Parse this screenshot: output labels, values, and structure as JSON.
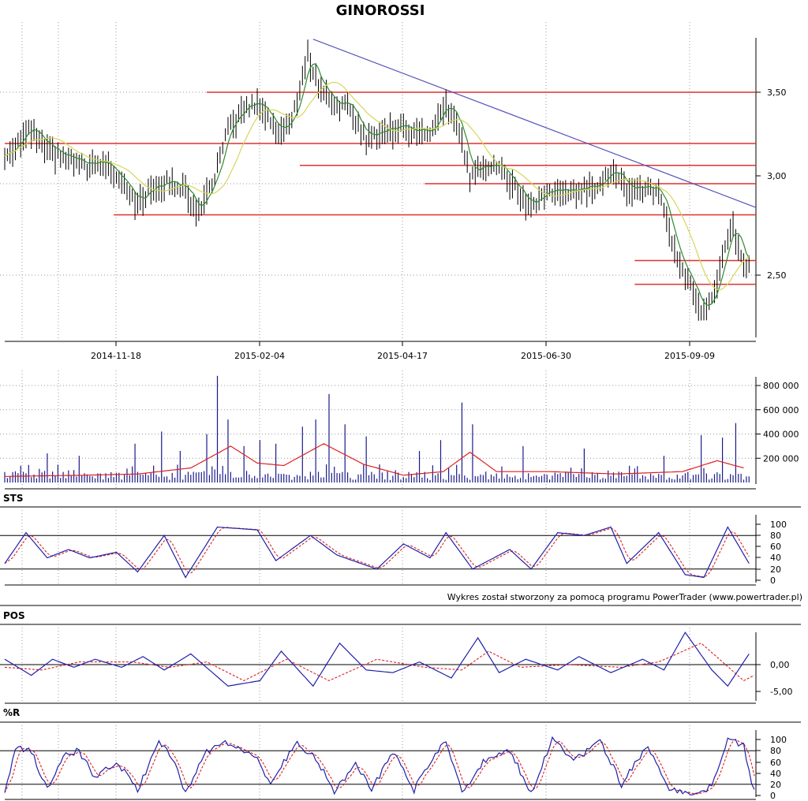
{
  "colors": {
    "price_bar": "#000000",
    "ma_fast": "#2e8b2e",
    "ma_slow": "#d6d65a",
    "support_line": "#e03030",
    "trend_line": "#5555bb",
    "volume_bar": "#1a1a8c",
    "volume_avg": "#dd2020",
    "osc_main": "#2020aa",
    "osc_signal": "#dd2020",
    "grid": "#999999"
  },
  "chart_data": [
    {
      "type": "line",
      "panel": "price",
      "title": "GINOROSSI",
      "x_tick_labels": [
        "2014-11-18",
        "2015-02-04",
        "2015-04-17",
        "2015-06-30",
        "2015-09-09"
      ],
      "y_tick_labels": [
        "3,50",
        "3,00",
        "2,50"
      ],
      "ylim": [
        2.2,
        3.8
      ],
      "grid": true,
      "price_path": [
        {
          "t": 0,
          "v": 3.15
        },
        {
          "t": 5,
          "v": 3.25
        },
        {
          "t": 10,
          "v": 3.3
        },
        {
          "t": 15,
          "v": 3.2
        },
        {
          "t": 22,
          "v": 3.15
        },
        {
          "t": 30,
          "v": 3.1
        },
        {
          "t": 38,
          "v": 3.12
        },
        {
          "t": 45,
          "v": 3.02
        },
        {
          "t": 50,
          "v": 2.9
        },
        {
          "t": 56,
          "v": 3.0
        },
        {
          "t": 62,
          "v": 3.02
        },
        {
          "t": 68,
          "v": 2.98
        },
        {
          "t": 72,
          "v": 2.85
        },
        {
          "t": 78,
          "v": 3.0
        },
        {
          "t": 84,
          "v": 3.3
        },
        {
          "t": 90,
          "v": 3.42
        },
        {
          "t": 96,
          "v": 3.45
        },
        {
          "t": 102,
          "v": 3.3
        },
        {
          "t": 108,
          "v": 3.35
        },
        {
          "t": 114,
          "v": 3.72
        },
        {
          "t": 118,
          "v": 3.55
        },
        {
          "t": 124,
          "v": 3.45
        },
        {
          "t": 130,
          "v": 3.42
        },
        {
          "t": 136,
          "v": 3.25
        },
        {
          "t": 142,
          "v": 3.3
        },
        {
          "t": 148,
          "v": 3.32
        },
        {
          "t": 154,
          "v": 3.3
        },
        {
          "t": 160,
          "v": 3.28
        },
        {
          "t": 166,
          "v": 3.43
        },
        {
          "t": 170,
          "v": 3.35
        },
        {
          "t": 175,
          "v": 3.05
        },
        {
          "t": 180,
          "v": 3.12
        },
        {
          "t": 186,
          "v": 3.1
        },
        {
          "t": 192,
          "v": 2.98
        },
        {
          "t": 198,
          "v": 2.88
        },
        {
          "t": 204,
          "v": 2.97
        },
        {
          "t": 210,
          "v": 2.95
        },
        {
          "t": 216,
          "v": 2.97
        },
        {
          "t": 222,
          "v": 3.0
        },
        {
          "t": 228,
          "v": 3.08
        },
        {
          "t": 234,
          "v": 2.98
        },
        {
          "t": 240,
          "v": 2.98
        },
        {
          "t": 246,
          "v": 2.95
        },
        {
          "t": 250,
          "v": 2.75
        },
        {
          "t": 254,
          "v": 2.55
        },
        {
          "t": 258,
          "v": 2.45
        },
        {
          "t": 262,
          "v": 2.3
        },
        {
          "t": 266,
          "v": 2.4
        },
        {
          "t": 270,
          "v": 2.6
        },
        {
          "t": 274,
          "v": 2.78
        },
        {
          "t": 278,
          "v": 2.55
        }
      ],
      "support_lines": [
        {
          "value": 3.5,
          "from": 76,
          "to": 282
        },
        {
          "value": 3.22,
          "from": 0,
          "to": 282
        },
        {
          "value": 3.1,
          "from": 111,
          "to": 282
        },
        {
          "value": 3.0,
          "from": 158,
          "to": 282
        },
        {
          "value": 2.83,
          "from": 41,
          "to": 282
        },
        {
          "value": 2.58,
          "from": 237,
          "to": 282
        },
        {
          "value": 2.45,
          "from": 237,
          "to": 282
        }
      ],
      "trend_line": {
        "from": {
          "t": 116,
          "v": 3.79
        },
        "to": {
          "t": 282,
          "v": 2.87
        }
      }
    },
    {
      "type": "bar",
      "panel": "volume",
      "y_tick_labels": [
        "800 000",
        "600 000",
        "400 000",
        "200 000"
      ],
      "ylim": [
        0,
        900000
      ],
      "grid": true,
      "spikes": [
        {
          "t": 16,
          "v": 240000
        },
        {
          "t": 28,
          "v": 220000
        },
        {
          "t": 49,
          "v": 320000
        },
        {
          "t": 59,
          "v": 420000
        },
        {
          "t": 66,
          "v": 260000
        },
        {
          "t": 76,
          "v": 400000
        },
        {
          "t": 80,
          "v": 880000
        },
        {
          "t": 84,
          "v": 520000
        },
        {
          "t": 90,
          "v": 300000
        },
        {
          "t": 96,
          "v": 350000
        },
        {
          "t": 102,
          "v": 320000
        },
        {
          "t": 112,
          "v": 460000
        },
        {
          "t": 117,
          "v": 520000
        },
        {
          "t": 122,
          "v": 730000
        },
        {
          "t": 128,
          "v": 480000
        },
        {
          "t": 136,
          "v": 380000
        },
        {
          "t": 156,
          "v": 260000
        },
        {
          "t": 164,
          "v": 350000
        },
        {
          "t": 172,
          "v": 660000
        },
        {
          "t": 176,
          "v": 480000
        },
        {
          "t": 195,
          "v": 300000
        },
        {
          "t": 218,
          "v": 280000
        },
        {
          "t": 248,
          "v": 220000
        },
        {
          "t": 262,
          "v": 390000
        },
        {
          "t": 270,
          "v": 370000
        },
        {
          "t": 275,
          "v": 490000
        }
      ],
      "average_path": [
        {
          "t": 0,
          "v": 50000
        },
        {
          "t": 30,
          "v": 60000
        },
        {
          "t": 50,
          "v": 70000
        },
        {
          "t": 70,
          "v": 120000
        },
        {
          "t": 85,
          "v": 300000
        },
        {
          "t": 95,
          "v": 160000
        },
        {
          "t": 105,
          "v": 140000
        },
        {
          "t": 120,
          "v": 320000
        },
        {
          "t": 135,
          "v": 150000
        },
        {
          "t": 150,
          "v": 60000
        },
        {
          "t": 165,
          "v": 90000
        },
        {
          "t": 175,
          "v": 250000
        },
        {
          "t": 185,
          "v": 90000
        },
        {
          "t": 205,
          "v": 90000
        },
        {
          "t": 230,
          "v": 70000
        },
        {
          "t": 255,
          "v": 90000
        },
        {
          "t": 268,
          "v": 180000
        },
        {
          "t": 278,
          "v": 120000
        }
      ]
    },
    {
      "type": "line",
      "panel": "oscillator",
      "label": "STS",
      "y_tick_labels": [
        "100",
        "80",
        "60",
        "40",
        "20",
        "0"
      ],
      "ylim": [
        0,
        100
      ],
      "reference_lines": [
        80,
        20
      ],
      "grid": true,
      "main_path": [
        {
          "t": 0,
          "v": 30
        },
        {
          "t": 8,
          "v": 85
        },
        {
          "t": 16,
          "v": 40
        },
        {
          "t": 24,
          "v": 55
        },
        {
          "t": 32,
          "v": 40
        },
        {
          "t": 42,
          "v": 50
        },
        {
          "t": 50,
          "v": 15
        },
        {
          "t": 60,
          "v": 80
        },
        {
          "t": 68,
          "v": 5
        },
        {
          "t": 80,
          "v": 95
        },
        {
          "t": 95,
          "v": 90
        },
        {
          "t": 102,
          "v": 35
        },
        {
          "t": 115,
          "v": 80
        },
        {
          "t": 125,
          "v": 45
        },
        {
          "t": 140,
          "v": 20
        },
        {
          "t": 150,
          "v": 65
        },
        {
          "t": 160,
          "v": 40
        },
        {
          "t": 166,
          "v": 85
        },
        {
          "t": 176,
          "v": 20
        },
        {
          "t": 190,
          "v": 55
        },
        {
          "t": 198,
          "v": 20
        },
        {
          "t": 208,
          "v": 85
        },
        {
          "t": 218,
          "v": 80
        },
        {
          "t": 228,
          "v": 95
        },
        {
          "t": 234,
          "v": 30
        },
        {
          "t": 246,
          "v": 85
        },
        {
          "t": 256,
          "v": 10
        },
        {
          "t": 263,
          "v": 5
        },
        {
          "t": 272,
          "v": 95
        },
        {
          "t": 280,
          "v": 30
        }
      ]
    },
    {
      "type": "line",
      "panel": "oscillator",
      "label": "POS",
      "y_tick_labels": [
        "0,00",
        "-5,00"
      ],
      "ylim": [
        -6.5,
        4.5
      ],
      "reference_lines": [
        0
      ],
      "grid": true,
      "main_path": [
        {
          "t": 0,
          "v": -1
        },
        {
          "t": 10,
          "v": 2
        },
        {
          "t": 18,
          "v": -1
        },
        {
          "t": 26,
          "v": 0.5
        },
        {
          "t": 34,
          "v": -1
        },
        {
          "t": 44,
          "v": 0.5
        },
        {
          "t": 52,
          "v": -1.5
        },
        {
          "t": 60,
          "v": 1
        },
        {
          "t": 70,
          "v": -2
        },
        {
          "t": 84,
          "v": 4
        },
        {
          "t": 96,
          "v": 3
        },
        {
          "t": 104,
          "v": -2.5
        },
        {
          "t": 116,
          "v": 4
        },
        {
          "t": 126,
          "v": -4
        },
        {
          "t": 136,
          "v": 1
        },
        {
          "t": 146,
          "v": 1.5
        },
        {
          "t": 156,
          "v": -0.5
        },
        {
          "t": 168,
          "v": 2.5
        },
        {
          "t": 178,
          "v": -5
        },
        {
          "t": 186,
          "v": 1.5
        },
        {
          "t": 196,
          "v": -1
        },
        {
          "t": 208,
          "v": 1
        },
        {
          "t": 216,
          "v": -1.5
        },
        {
          "t": 228,
          "v": 1.5
        },
        {
          "t": 240,
          "v": -1
        },
        {
          "t": 248,
          "v": 1
        },
        {
          "t": 256,
          "v": -6
        },
        {
          "t": 266,
          "v": 1
        },
        {
          "t": 272,
          "v": 4
        },
        {
          "t": 280,
          "v": -2
        }
      ],
      "signal_path": [
        {
          "t": 0,
          "v": 0.5
        },
        {
          "t": 14,
          "v": 1
        },
        {
          "t": 28,
          "v": -0.5
        },
        {
          "t": 48,
          "v": -0.5
        },
        {
          "t": 62,
          "v": 0.5
        },
        {
          "t": 76,
          "v": -0.5
        },
        {
          "t": 90,
          "v": 3
        },
        {
          "t": 106,
          "v": -1
        },
        {
          "t": 122,
          "v": 3
        },
        {
          "t": 140,
          "v": -1
        },
        {
          "t": 158,
          "v": 0.5
        },
        {
          "t": 172,
          "v": 1
        },
        {
          "t": 182,
          "v": -2.5
        },
        {
          "t": 194,
          "v": 0.5
        },
        {
          "t": 212,
          "v": 0
        },
        {
          "t": 232,
          "v": 0.5
        },
        {
          "t": 246,
          "v": -0.5
        },
        {
          "t": 262,
          "v": -4
        },
        {
          "t": 278,
          "v": 3
        },
        {
          "t": 282,
          "v": 2
        }
      ]
    },
    {
      "type": "line",
      "panel": "oscillator",
      "label": "%R",
      "y_tick_labels": [
        "100",
        "80",
        "60",
        "40",
        "20",
        "0"
      ],
      "ylim": [
        0,
        100
      ],
      "reference_lines": [
        80,
        20
      ],
      "grid": true,
      "main_path": [
        {
          "t": 0,
          "v": 5
        },
        {
          "t": 4,
          "v": 85
        },
        {
          "t": 10,
          "v": 80
        },
        {
          "t": 16,
          "v": 10
        },
        {
          "t": 22,
          "v": 70
        },
        {
          "t": 28,
          "v": 80
        },
        {
          "t": 34,
          "v": 30
        },
        {
          "t": 42,
          "v": 60
        },
        {
          "t": 50,
          "v": 10
        },
        {
          "t": 58,
          "v": 95
        },
        {
          "t": 64,
          "v": 60
        },
        {
          "t": 68,
          "v": 5
        },
        {
          "t": 76,
          "v": 80
        },
        {
          "t": 84,
          "v": 95
        },
        {
          "t": 94,
          "v": 70
        },
        {
          "t": 100,
          "v": 25
        },
        {
          "t": 110,
          "v": 95
        },
        {
          "t": 118,
          "v": 60
        },
        {
          "t": 124,
          "v": 5
        },
        {
          "t": 132,
          "v": 60
        },
        {
          "t": 138,
          "v": 10
        },
        {
          "t": 146,
          "v": 80
        },
        {
          "t": 154,
          "v": 10
        },
        {
          "t": 160,
          "v": 60
        },
        {
          "t": 166,
          "v": 100
        },
        {
          "t": 172,
          "v": 5
        },
        {
          "t": 180,
          "v": 60
        },
        {
          "t": 190,
          "v": 80
        },
        {
          "t": 198,
          "v": 5
        },
        {
          "t": 206,
          "v": 100
        },
        {
          "t": 214,
          "v": 60
        },
        {
          "t": 224,
          "v": 100
        },
        {
          "t": 232,
          "v": 20
        },
        {
          "t": 242,
          "v": 90
        },
        {
          "t": 250,
          "v": 10
        },
        {
          "t": 258,
          "v": 2
        },
        {
          "t": 266,
          "v": 15
        },
        {
          "t": 272,
          "v": 100
        },
        {
          "t": 278,
          "v": 90
        },
        {
          "t": 282,
          "v": 5
        }
      ]
    }
  ],
  "credit": "Wykres został stworzony za pomocą programu PowerTrader (www.powertrader.pl)"
}
